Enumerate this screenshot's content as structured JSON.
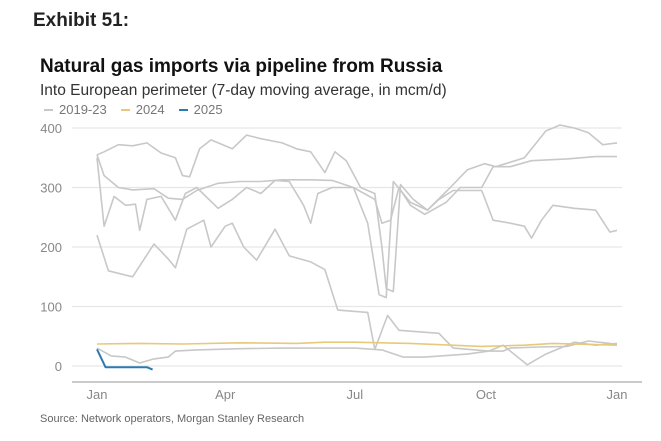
{
  "exhibit": "Exhibit 51:",
  "source": "Source: Network operators, Morgan Stanley Research",
  "chart_data": {
    "type": "line",
    "title": "Natural gas imports via pipeline from Russia",
    "subtitle": "Into European perimeter (7-day moving average, in mcm/d)",
    "xlabel": "",
    "ylabel": "mcm/d",
    "xlim": [
      0,
      365
    ],
    "ylim": [
      -20,
      400
    ],
    "yticks": [
      0,
      100,
      200,
      300,
      400
    ],
    "xticks": [
      {
        "day": 0,
        "label": "Jan"
      },
      {
        "day": 90,
        "label": "Apr"
      },
      {
        "day": 181,
        "label": "Jul"
      },
      {
        "day": 273,
        "label": "Oct"
      },
      {
        "day": 365,
        "label": "Jan"
      }
    ],
    "grid": true,
    "legend_placement": "top-left",
    "legend": [
      {
        "label": "2019-23",
        "color": "#c8c8c8"
      },
      {
        "label": "2024",
        "color": "#e8c97a"
      },
      {
        "label": "2025",
        "color": "#2b7bb0"
      }
    ],
    "series": [
      {
        "name": "2019-23",
        "color": "#c8c8c8",
        "points": [
          [
            0,
            355
          ],
          [
            5,
            360
          ],
          [
            15,
            372
          ],
          [
            25,
            370
          ],
          [
            35,
            375
          ],
          [
            45,
            358
          ],
          [
            55,
            350
          ],
          [
            60,
            320
          ],
          [
            65,
            318
          ],
          [
            72,
            365
          ],
          [
            80,
            380
          ],
          [
            95,
            365
          ],
          [
            105,
            388
          ],
          [
            115,
            382
          ],
          [
            130,
            375
          ],
          [
            140,
            365
          ],
          [
            150,
            360
          ],
          [
            160,
            325
          ],
          [
            167,
            360
          ],
          [
            175,
            345
          ],
          [
            185,
            300
          ],
          [
            195,
            290
          ],
          [
            200,
            200
          ],
          [
            203,
            130
          ],
          [
            208,
            125
          ],
          [
            213,
            305
          ],
          [
            222,
            280
          ],
          [
            232,
            262
          ],
          [
            248,
            300
          ],
          [
            260,
            330
          ],
          [
            272,
            340
          ],
          [
            280,
            335
          ],
          [
            300,
            350
          ],
          [
            315,
            395
          ],
          [
            325,
            405
          ],
          [
            335,
            400
          ],
          [
            345,
            392
          ],
          [
            355,
            372
          ],
          [
            365,
            375
          ]
        ]
      },
      {
        "name": "2019-23",
        "color": "#c8c8c8",
        "points": [
          [
            0,
            355
          ],
          [
            5,
            320
          ],
          [
            15,
            300
          ],
          [
            25,
            296
          ],
          [
            40,
            298
          ],
          [
            50,
            282
          ],
          [
            60,
            280
          ],
          [
            70,
            295
          ],
          [
            85,
            307
          ],
          [
            100,
            310
          ],
          [
            115,
            310
          ],
          [
            130,
            313
          ],
          [
            150,
            313
          ],
          [
            165,
            312
          ],
          [
            180,
            300
          ],
          [
            195,
            280
          ],
          [
            200,
            240
          ],
          [
            206,
            245
          ],
          [
            212,
            300
          ],
          [
            220,
            270
          ],
          [
            230,
            255
          ],
          [
            245,
            275
          ],
          [
            255,
            300
          ],
          [
            270,
            300
          ],
          [
            278,
            335
          ],
          [
            290,
            335
          ],
          [
            305,
            345
          ],
          [
            330,
            348
          ],
          [
            350,
            352
          ],
          [
            365,
            352
          ]
        ]
      },
      {
        "name": "2019-23",
        "color": "#c8c8c8",
        "points": [
          [
            0,
            220
          ],
          [
            8,
            160
          ],
          [
            25,
            150
          ],
          [
            40,
            205
          ],
          [
            50,
            180
          ],
          [
            55,
            165
          ],
          [
            63,
            230
          ],
          [
            75,
            245
          ],
          [
            80,
            200
          ],
          [
            90,
            235
          ],
          [
            95,
            240
          ],
          [
            103,
            200
          ],
          [
            112,
            178
          ],
          [
            125,
            230
          ],
          [
            135,
            185
          ],
          [
            150,
            175
          ],
          [
            160,
            162
          ],
          [
            169,
            94
          ],
          [
            190,
            90
          ],
          [
            195,
            28
          ],
          [
            204,
            85
          ],
          [
            212,
            60
          ],
          [
            240,
            55
          ],
          [
            250,
            30
          ],
          [
            275,
            25
          ],
          [
            285,
            35
          ],
          [
            302,
            2
          ],
          [
            315,
            20
          ],
          [
            335,
            40
          ],
          [
            350,
            35
          ],
          [
            365,
            38
          ]
        ]
      },
      {
        "name": "2019-23",
        "color": "#c8c8c8",
        "points": [
          [
            0,
            350
          ],
          [
            5,
            235
          ],
          [
            12,
            285
          ],
          [
            20,
            270
          ],
          [
            27,
            272
          ],
          [
            30,
            228
          ],
          [
            35,
            280
          ],
          [
            45,
            285
          ],
          [
            55,
            245
          ],
          [
            62,
            290
          ],
          [
            70,
            300
          ],
          [
            85,
            265
          ],
          [
            95,
            280
          ],
          [
            105,
            300
          ],
          [
            115,
            290
          ],
          [
            125,
            312
          ],
          [
            135,
            310
          ],
          [
            145,
            270
          ],
          [
            150,
            240
          ],
          [
            155,
            290
          ],
          [
            165,
            300
          ],
          [
            180,
            300
          ],
          [
            190,
            240
          ],
          [
            198,
            120
          ],
          [
            203,
            115
          ],
          [
            208,
            310
          ],
          [
            220,
            275
          ],
          [
            232,
            262
          ],
          [
            240,
            280
          ],
          [
            250,
            295
          ],
          [
            270,
            295
          ],
          [
            278,
            245
          ],
          [
            290,
            240
          ],
          [
            300,
            235
          ],
          [
            305,
            215
          ],
          [
            312,
            245
          ],
          [
            320,
            270
          ],
          [
            335,
            265
          ],
          [
            350,
            262
          ],
          [
            360,
            225
          ],
          [
            365,
            228
          ]
        ]
      },
      {
        "name": "2019-23",
        "color": "#c8c8c8",
        "points": [
          [
            0,
            30
          ],
          [
            10,
            17
          ],
          [
            20,
            15
          ],
          [
            30,
            5
          ],
          [
            40,
            12
          ],
          [
            50,
            15
          ],
          [
            55,
            25
          ],
          [
            70,
            27
          ],
          [
            100,
            29
          ],
          [
            130,
            30
          ],
          [
            160,
            30
          ],
          [
            181,
            30
          ],
          [
            200,
            27
          ],
          [
            215,
            15
          ],
          [
            230,
            15
          ],
          [
            260,
            20
          ],
          [
            275,
            25
          ],
          [
            285,
            25
          ],
          [
            290,
            30
          ],
          [
            310,
            32
          ],
          [
            330,
            33
          ],
          [
            345,
            42
          ],
          [
            360,
            38
          ],
          [
            365,
            36
          ]
        ]
      },
      {
        "name": "2024",
        "color": "#e8c97a",
        "points": [
          [
            0,
            37
          ],
          [
            30,
            38
          ],
          [
            60,
            37
          ],
          [
            100,
            39
          ],
          [
            140,
            38
          ],
          [
            160,
            40
          ],
          [
            181,
            40
          ],
          [
            220,
            38
          ],
          [
            270,
            33
          ],
          [
            300,
            35
          ],
          [
            320,
            38
          ],
          [
            350,
            36
          ],
          [
            365,
            35
          ]
        ]
      },
      {
        "name": "2025",
        "color": "#2b7bb0",
        "points": [
          [
            0,
            28
          ],
          [
            6,
            -2
          ],
          [
            35,
            -2
          ],
          [
            39,
            -6
          ]
        ]
      }
    ]
  }
}
